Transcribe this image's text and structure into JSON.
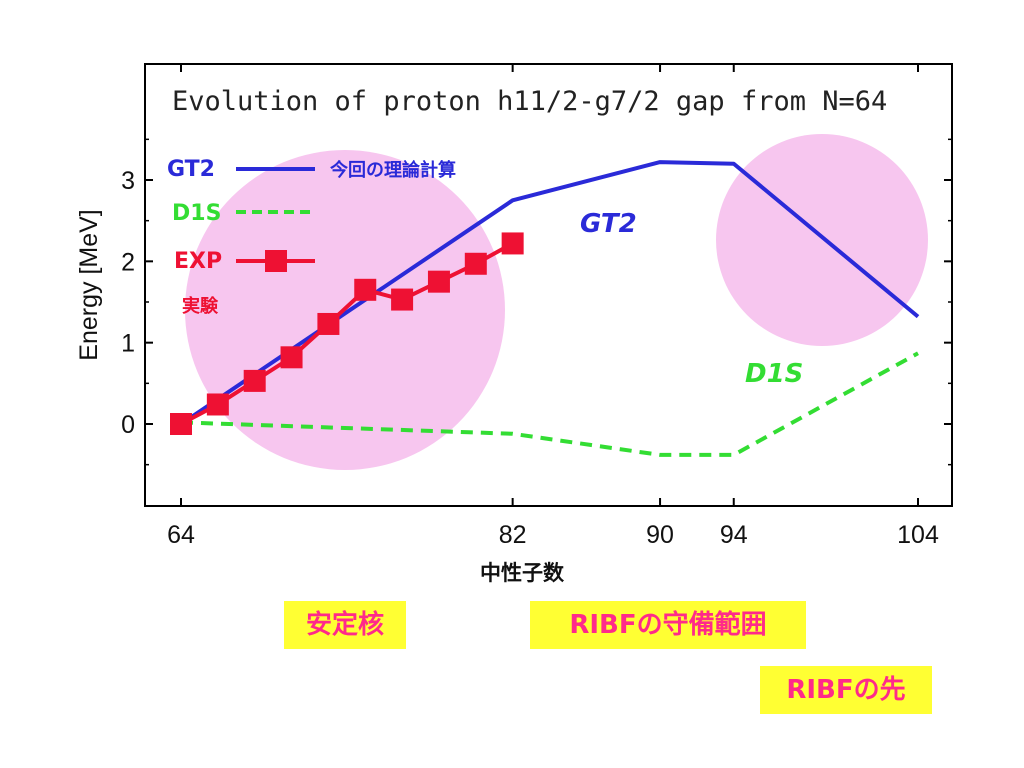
{
  "colors": {
    "gt2": "#2a2ad8",
    "d1s": "#33dd33",
    "exp": "#ee1133",
    "highlight": "#f7c6ef",
    "region_bg": "#ffff33",
    "region_text": "#ff2a8a"
  },
  "chart_data": {
    "type": "line",
    "title": "Evolution of proton h11/2-g7/2 gap from N=64",
    "xlabel": "中性子数",
    "ylabel": "Energy [MeV]",
    "xlim": [
      64,
      104
    ],
    "ylim": [
      -1,
      4.4
    ],
    "x_ticks": [
      64,
      82,
      90,
      94,
      104
    ],
    "y_ticks": [
      0,
      1,
      2,
      3
    ],
    "grid": false,
    "legend_position": "top-left",
    "series": [
      {
        "name": "GT2",
        "style": "solid",
        "x": [
          64,
          82,
          90,
          94,
          104
        ],
        "y": [
          0.0,
          2.75,
          3.22,
          3.2,
          1.32
        ]
      },
      {
        "name": "D1S",
        "style": "dashed",
        "x": [
          64,
          82,
          90,
          94,
          104
        ],
        "y": [
          0.02,
          -0.12,
          -0.38,
          -0.38,
          0.87
        ]
      },
      {
        "name": "EXP",
        "style": "solid-square-markers",
        "x": [
          64,
          66,
          68,
          70,
          72,
          74,
          76,
          78,
          80,
          82
        ],
        "y": [
          0.0,
          0.24,
          0.53,
          0.82,
          1.23,
          1.65,
          1.53,
          1.75,
          1.97,
          2.22
        ]
      }
    ],
    "annotations": {
      "gt2_note": "今回の理論計算",
      "exp_note": "実験",
      "gt2_label": "GT2",
      "d1s_label": "D1S"
    }
  },
  "regions": {
    "stable": "安定核",
    "ribf_coverage": "RIBFの守備範囲",
    "ribf_beyond": "RIBFの先"
  }
}
